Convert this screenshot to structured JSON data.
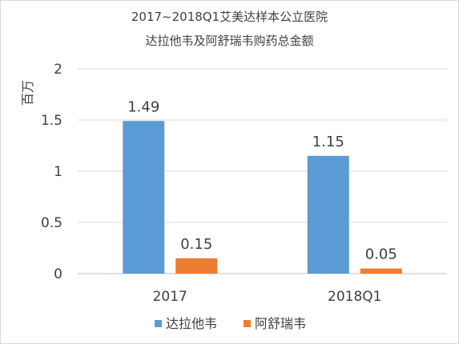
{
  "chart_data": {
    "type": "bar",
    "title": [
      "2017~2018Q1艾美达样本公立医院",
      "达拉他韦及阿舒瑞韦购药总金额"
    ],
    "ylabel": "百万",
    "xlabel": "",
    "categories": [
      "2017",
      "2018Q1"
    ],
    "series": [
      {
        "name": "达拉他韦",
        "values": [
          1.49,
          1.15
        ],
        "color": "#5b9bd5"
      },
      {
        "name": "阿舒瑞韦",
        "values": [
          0.15,
          0.05
        ],
        "color": "#ed7d31"
      }
    ],
    "value_labels": [
      [
        "1.49",
        "1.15"
      ],
      [
        "0.15",
        "0.05"
      ]
    ],
    "ylim": [
      0,
      2
    ],
    "yticks": [
      "0",
      "0.5",
      "1",
      "1.5",
      "2"
    ],
    "grid": true,
    "legend": "bottom"
  }
}
